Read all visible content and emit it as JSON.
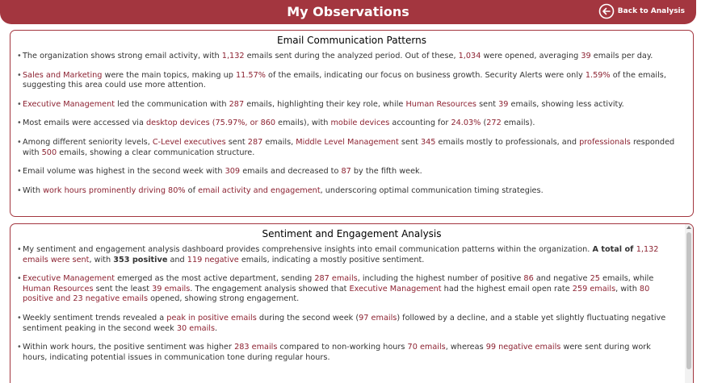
{
  "header": {
    "title": "My Observations",
    "back_label": "Back to Analysis"
  },
  "email_panel": {
    "title": "Email Communication Patterns",
    "items": [
      [
        {
          "t": "The organization shows strong email activity, with "
        },
        {
          "t": "1,132",
          "h": true
        },
        {
          "t": " emails sent during the analyzed period. Out of these, "
        },
        {
          "t": "1,034",
          "h": true
        },
        {
          "t": " were opened, averaging "
        },
        {
          "t": "39",
          "h": true
        },
        {
          "t": " emails per day."
        }
      ],
      [
        {
          "t": "Sales and Marketing",
          "h": true
        },
        {
          "t": " were the main topics, making up "
        },
        {
          "t": "11.57%",
          "h": true
        },
        {
          "t": " of the emails, indicating our focus on business growth. Security Alerts were only "
        },
        {
          "t": "1.59%",
          "h": true
        },
        {
          "t": " of the emails, suggesting this area could use more attention."
        }
      ],
      [
        {
          "t": "Executive Management",
          "h": true
        },
        {
          "t": " led the communication with "
        },
        {
          "t": "287",
          "h": true
        },
        {
          "t": " emails, highlighting their key role, while "
        },
        {
          "t": "Human Resources",
          "h": true
        },
        {
          "t": " sent "
        },
        {
          "t": "39",
          "h": true
        },
        {
          "t": " emails, showing less activity."
        }
      ],
      [
        {
          "t": "Most emails were accessed via "
        },
        {
          "t": "desktop devices",
          "h": true
        },
        {
          "t": " "
        },
        {
          "t": "(75.97%, or 860",
          "h": true
        },
        {
          "t": " emails), with "
        },
        {
          "t": "mobile devices",
          "h": true
        },
        {
          "t": " accounting for "
        },
        {
          "t": "24.03%",
          "h": true
        },
        {
          "t": " ("
        },
        {
          "t": "272",
          "h": true
        },
        {
          "t": " emails)."
        }
      ],
      [
        {
          "t": "Among different seniority levels, "
        },
        {
          "t": "C-Level executives",
          "h": true
        },
        {
          "t": " sent "
        },
        {
          "t": "287",
          "h": true
        },
        {
          "t": " emails, "
        },
        {
          "t": "Middle Level Management",
          "h": true
        },
        {
          "t": " sent "
        },
        {
          "t": "345",
          "h": true
        },
        {
          "t": " emails mostly to professionals, and "
        },
        {
          "t": "professionals",
          "h": true
        },
        {
          "t": " responded with "
        },
        {
          "t": "500",
          "h": true
        },
        {
          "t": " emails, showing a clear communication structure."
        }
      ],
      [
        {
          "t": "Email volume was highest in the second week with "
        },
        {
          "t": "309",
          "h": true
        },
        {
          "t": " emails and decreased to "
        },
        {
          "t": "87",
          "h": true
        },
        {
          "t": " by the fifth week."
        }
      ],
      [
        {
          "t": "With "
        },
        {
          "t": "work hours prominently driving 80%",
          "h": true
        },
        {
          "t": " of "
        },
        {
          "t": "email activity and engagement",
          "h": true
        },
        {
          "t": ", underscoring optimal communication timing strategies."
        }
      ]
    ]
  },
  "sentiment_panel": {
    "title": "Sentiment and Engagement Analysis",
    "items": [
      [
        {
          "t": "My sentiment and engagement analysis dashboard provides comprehensive insights into email communication patterns within the organization. "
        },
        {
          "t": "A total of ",
          "b": true
        },
        {
          "t": "1,132",
          "h": true
        },
        {
          "t": " "
        },
        {
          "t": "emails were sent",
          "h": true
        },
        {
          "t": ", with "
        },
        {
          "t": "353 positive",
          "b": true
        },
        {
          "t": " and "
        },
        {
          "t": "119 negative",
          "h": true
        },
        {
          "t": " emails, indicating a mostly positive sentiment."
        }
      ],
      [
        {
          "t": "Executive Management",
          "h": true
        },
        {
          "t": " emerged as the most active department, sending "
        },
        {
          "t": "287 emails",
          "h": true
        },
        {
          "t": ", including the highest number of positive "
        },
        {
          "t": "86",
          "h": true
        },
        {
          "t": " and negative "
        },
        {
          "t": "25",
          "h": true
        },
        {
          "t": " emails, while "
        },
        {
          "t": "Human Resources",
          "h": true
        },
        {
          "t": " sent the least "
        },
        {
          "t": "39 emails",
          "h": true
        },
        {
          "t": ". The engagement analysis showed that "
        },
        {
          "t": "Executive Management",
          "h": true
        },
        {
          "t": " had the highest email open rate "
        },
        {
          "t": "259 emails",
          "h": true
        },
        {
          "t": ", with "
        },
        {
          "t": "80 positive and 23 negative emails",
          "h": true
        },
        {
          "t": " opened, showing strong engagement."
        }
      ],
      [
        {
          "t": "Weekly sentiment trends revealed a "
        },
        {
          "t": "peak in positive emails",
          "h": true
        },
        {
          "t": " during the second week ("
        },
        {
          "t": "97 emails",
          "h": true
        },
        {
          "t": ") followed by a decline, and a stable yet slightly fluctuating negative sentiment peaking in the second week "
        },
        {
          "t": "30 emails",
          "h": true
        },
        {
          "t": "."
        }
      ],
      [
        {
          "t": "Within work hours, the positive sentiment was higher "
        },
        {
          "t": "283 emails",
          "h": true
        },
        {
          "t": " compared to non-working hours "
        },
        {
          "t": "70 emails",
          "h": true
        },
        {
          "t": ", whereas "
        },
        {
          "t": "99 negative emails",
          "h": true
        },
        {
          "t": " were sent during work hours, indicating potential issues in communication tone during regular hours."
        }
      ]
    ]
  },
  "colors": {
    "accent": "#a3363f",
    "highlight": "#8c2231"
  }
}
